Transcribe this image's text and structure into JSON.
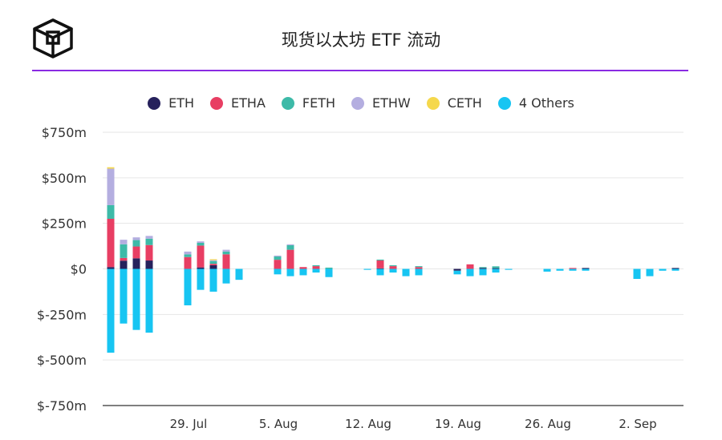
{
  "title": "现货以太坊 ETF 流动",
  "chart_data": {
    "type": "bar",
    "stacked": true,
    "ylim": [
      -750,
      750
    ],
    "y_unit": "m",
    "yticks": [
      750,
      500,
      250,
      0,
      -250,
      -500,
      -750
    ],
    "ytick_labels": [
      "$750m",
      "$500m",
      "$250m",
      "$0",
      "$-250m",
      "$-500m",
      "$-750m"
    ],
    "xtick_labels": [
      "29. Jul",
      "5. Aug",
      "12. Aug",
      "19. Aug",
      "26. Aug",
      "2. Sep"
    ],
    "x_start": "2024-07-23",
    "x_end": "2024-09-06",
    "legend_position": "top-center",
    "grid": true,
    "dates": [
      "2024-07-23",
      "2024-07-24",
      "2024-07-25",
      "2024-07-26",
      "2024-07-29",
      "2024-07-30",
      "2024-07-31",
      "2024-08-01",
      "2024-08-02",
      "2024-08-05",
      "2024-08-06",
      "2024-08-07",
      "2024-08-08",
      "2024-08-09",
      "2024-08-12",
      "2024-08-13",
      "2024-08-14",
      "2024-08-15",
      "2024-08-16",
      "2024-08-19",
      "2024-08-20",
      "2024-08-21",
      "2024-08-22",
      "2024-08-23",
      "2024-08-26",
      "2024-08-27",
      "2024-08-28",
      "2024-08-29",
      "2024-09-02",
      "2024-09-03",
      "2024-09-04",
      "2024-09-05"
    ],
    "series": [
      {
        "name": "ETH",
        "color": "#26215c",
        "values": [
          10,
          45,
          58,
          46,
          0,
          8,
          20,
          0,
          0,
          0,
          0,
          0,
          0,
          0,
          0,
          3,
          0,
          0,
          0,
          -10,
          0,
          5,
          4,
          0,
          0,
          0,
          0,
          5,
          0,
          0,
          0,
          5
        ]
      },
      {
        "name": "ETHA",
        "color": "#e83e63",
        "values": [
          265,
          15,
          65,
          85,
          65,
          120,
          8,
          80,
          0,
          50,
          105,
          10,
          15,
          0,
          0,
          45,
          15,
          0,
          10,
          0,
          25,
          0,
          0,
          0,
          0,
          0,
          5,
          0,
          0,
          0,
          0,
          0
        ]
      },
      {
        "name": "FETH",
        "color": "#3dbaa8",
        "values": [
          75,
          75,
          35,
          35,
          15,
          15,
          15,
          15,
          0,
          18,
          25,
          0,
          5,
          7,
          0,
          3,
          5,
          0,
          5,
          0,
          0,
          5,
          10,
          0,
          0,
          0,
          0,
          0,
          0,
          0,
          0,
          0
        ]
      },
      {
        "name": "ETHW",
        "color": "#b4aee0",
        "values": [
          200,
          25,
          15,
          15,
          15,
          8,
          5,
          10,
          0,
          5,
          5,
          0,
          0,
          0,
          0,
          0,
          0,
          0,
          0,
          0,
          0,
          0,
          0,
          0,
          0,
          0,
          0,
          0,
          0,
          0,
          0,
          0
        ]
      },
      {
        "name": "CETH",
        "color": "#f5d84c",
        "values": [
          8,
          0,
          0,
          0,
          0,
          0,
          5,
          0,
          0,
          0,
          0,
          0,
          0,
          0,
          0,
          0,
          0,
          0,
          0,
          0,
          0,
          0,
          0,
          0,
          0,
          0,
          0,
          0,
          0,
          0,
          0,
          0
        ]
      },
      {
        "name": "4 Others",
        "color": "#17c5f2",
        "values": [
          -460,
          -300,
          -335,
          -350,
          -200,
          -115,
          -125,
          -80,
          -60,
          -30,
          -40,
          -35,
          -20,
          -45,
          -5,
          -35,
          -20,
          -40,
          -35,
          -20,
          -40,
          -35,
          -20,
          -5,
          -15,
          -10,
          -10,
          -10,
          -55,
          -40,
          -10,
          -10
        ]
      }
    ]
  }
}
